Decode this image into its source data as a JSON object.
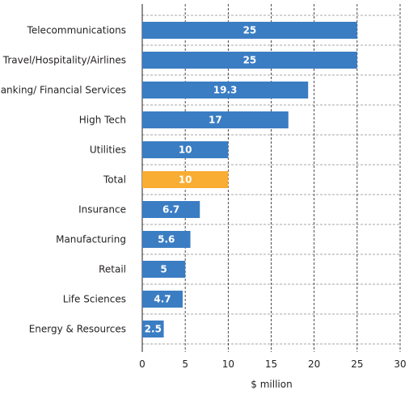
{
  "chart_data": {
    "type": "bar",
    "orientation": "horizontal",
    "categories": [
      "Telecommunications",
      "Travel/Hospitality/Airlines",
      "Banking/ Financial Services",
      "High Tech",
      "Utilities",
      "Total",
      "Insurance",
      "Manufacturing",
      "Retail",
      "Life Sciences",
      "Energy & Resources"
    ],
    "values": [
      25,
      25,
      19.3,
      17,
      10,
      10,
      6.7,
      5.6,
      5,
      4.7,
      2.5
    ],
    "value_labels": [
      "25",
      "25",
      "19.3",
      "17",
      "10",
      "10",
      "6.7",
      "5.6",
      "5",
      "4.7",
      "2.5"
    ],
    "title": "",
    "xlabel": "$ million",
    "ylabel": "",
    "xlim": [
      0,
      30
    ],
    "xticks": [
      0,
      5,
      10,
      15,
      20,
      25,
      30
    ],
    "grid": true,
    "legend": "none",
    "colors": {
      "bar": "#3a7dc3",
      "highlight": "#f9ad33",
      "highlight_category": "Total"
    }
  }
}
